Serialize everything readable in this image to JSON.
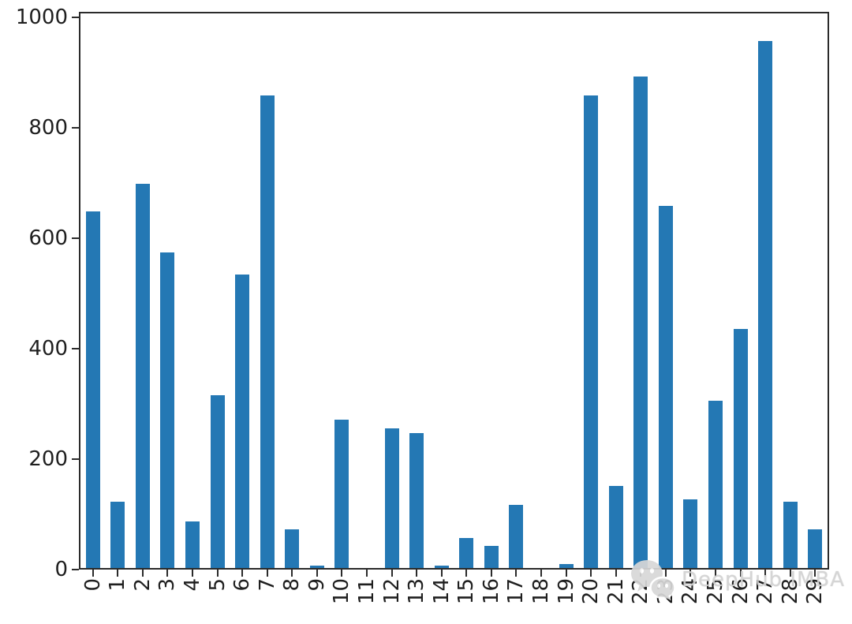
{
  "figure": {
    "background": "#ffffff",
    "frame_color": "#2b2b2b",
    "tick_label_color": "#1f1f1f"
  },
  "chart_data": {
    "type": "bar",
    "title": "",
    "xlabel": "",
    "ylabel": "",
    "categories": [
      "0",
      "1",
      "2",
      "3",
      "4",
      "5",
      "6",
      "7",
      "8",
      "9",
      "10",
      "11",
      "12",
      "13",
      "14",
      "15",
      "16",
      "17",
      "18",
      "19",
      "20",
      "21",
      "22",
      "23",
      "24",
      "25",
      "26",
      "27",
      "28",
      "29"
    ],
    "values": [
      650,
      120,
      700,
      575,
      85,
      315,
      535,
      860,
      70,
      5,
      270,
      0,
      255,
      245,
      5,
      55,
      40,
      115,
      0,
      7,
      860,
      150,
      895,
      660,
      125,
      305,
      435,
      960,
      120,
      70
    ],
    "bar_color": "#2478b4",
    "ylim": [
      0,
      1010
    ],
    "yticks": [
      0,
      200,
      400,
      600,
      800,
      1000
    ],
    "grid": false,
    "legend": null,
    "x_tick_rotation": 90
  },
  "watermark": {
    "text": "DeepHub IMBA",
    "icon": "wechat-icon"
  }
}
